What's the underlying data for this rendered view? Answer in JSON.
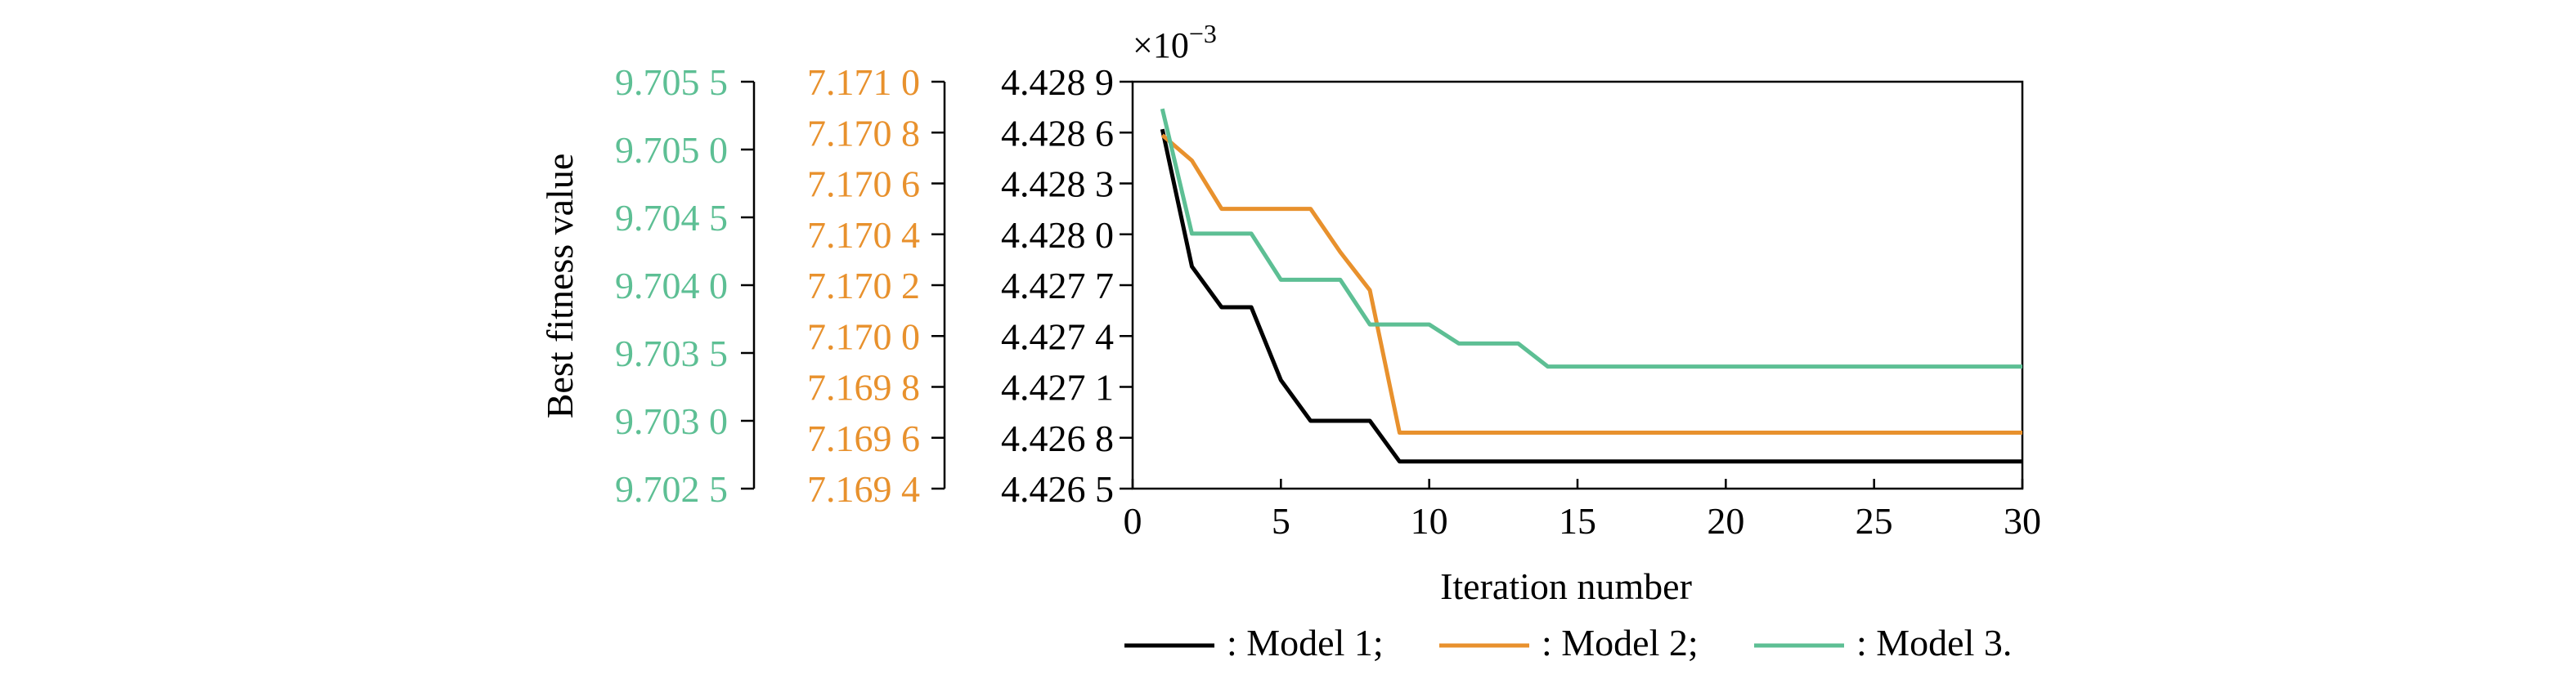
{
  "chart_data": {
    "type": "line",
    "xlabel": "Iteration number",
    "ylabel": "Best fitness value",
    "multiplier": "×10",
    "multiplier_exp": "−3",
    "xlim": [
      0,
      30
    ],
    "xticks": [
      "0",
      "5",
      "10",
      "15",
      "20",
      "25",
      "30"
    ],
    "axes": [
      {
        "color": "#000000",
        "ylim": [
          4.4265,
          4.4289
        ],
        "ticks": [
          "4.428 9",
          "4.428 6",
          "4.428 3",
          "4.428 0",
          "4.427 7",
          "4.427 4",
          "4.427 1",
          "4.426 8",
          "4.426 5"
        ]
      },
      {
        "color": "#E8912D",
        "ylim": [
          7.1694,
          7.171
        ],
        "ticks": [
          "7.171 0",
          "7.170 8",
          "7.170 6",
          "7.170 4",
          "7.170 2",
          "7.170 0",
          "7.169 8",
          "7.169 6",
          "7.169 4"
        ]
      },
      {
        "color": "#5DBF94",
        "ylim": [
          9.7025,
          9.7055
        ],
        "ticks": [
          "9.705 5",
          "9.705 0",
          "9.704 5",
          "9.704 0",
          "9.703 5",
          "9.703 0",
          "9.702 5"
        ]
      }
    ],
    "series": [
      {
        "name": ": Model 1;",
        "color": "#000000",
        "axis": 0,
        "x": [
          1,
          2,
          3,
          4,
          5,
          6,
          7,
          8,
          9,
          10,
          30
        ],
        "y": [
          4.42862,
          4.42781,
          4.42757,
          4.42757,
          4.42714,
          4.4269,
          4.4269,
          4.4269,
          4.42666,
          4.42666,
          4.42666
        ]
      },
      {
        "name": ": Model 2;",
        "color": "#E8912D",
        "axis": 1,
        "x": [
          1,
          2,
          3,
          4,
          5,
          6,
          7,
          8,
          8.5,
          9,
          30
        ],
        "y": [
          7.17079,
          7.17069,
          7.1705,
          7.1705,
          7.1705,
          7.1705,
          7.17033,
          7.17018,
          7.1699,
          7.16962,
          7.16962
        ]
      },
      {
        "name": ": Model 3.",
        "color": "#5DBF94",
        "axis": 2,
        "x": [
          1,
          2,
          3,
          4,
          5,
          6,
          7,
          8,
          9,
          10,
          11,
          12,
          13,
          14,
          30
        ],
        "y": [
          9.7053,
          9.70438,
          9.70438,
          9.70438,
          9.70404,
          9.70404,
          9.70404,
          9.70371,
          9.70371,
          9.70371,
          9.70357,
          9.70357,
          9.70357,
          9.7034,
          9.7034
        ]
      }
    ],
    "legend_position": "bottom"
  }
}
